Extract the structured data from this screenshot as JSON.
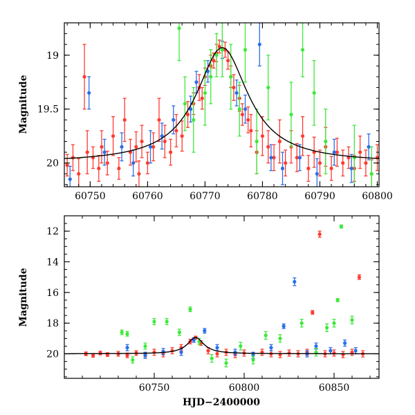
{
  "chart_data": [
    {
      "type": "scatter",
      "panel": "top",
      "xlabel": "",
      "ylabel": "Magnitude",
      "xlim": [
        60745.5,
        60800.3
      ],
      "ylim": [
        20.22,
        18.7
      ],
      "y_inverted": true,
      "x_ticks": [
        60750,
        60760,
        60770,
        60780,
        60790,
        60800
      ],
      "y_ticks": [
        19,
        19.5,
        20
      ],
      "x_tick_labels": [
        "60750",
        "60760",
        "60770",
        "60780",
        "60790",
        "60800"
      ],
      "y_tick_labels": [
        "19",
        "19.5",
        "20"
      ],
      "model_curve": {
        "name": "",
        "color": "#000000",
        "peak_x": 60773.0,
        "peak_mag": 18.93,
        "baseline_mag": 20.0,
        "width_days": 5.5
      },
      "series": [
        {
          "color": "#ff3b2f",
          "points": [
            [
              60746,
              20.02,
              0.1
            ],
            [
              60747,
              19.95,
              0.12
            ],
            [
              60748,
              20.1,
              0.14
            ],
            [
              60749,
              19.2,
              0.3
            ],
            [
              60749.5,
              19.9,
              0.2
            ],
            [
              60750.5,
              19.95,
              0.1
            ],
            [
              60751.5,
              20.05,
              0.12
            ],
            [
              60752,
              19.85,
              0.15
            ],
            [
              60753,
              20.0,
              0.11
            ],
            [
              60754,
              19.75,
              0.18
            ],
            [
              60755,
              20.05,
              0.1
            ],
            [
              60756,
              19.6,
              0.2
            ],
            [
              60757,
              19.9,
              0.12
            ],
            [
              60758,
              19.85,
              0.14
            ],
            [
              60758.5,
              20.1,
              0.12
            ],
            [
              60759,
              19.8,
              0.15
            ],
            [
              60760,
              20.0,
              0.1
            ],
            [
              60761,
              19.85,
              0.13
            ],
            [
              60762,
              19.6,
              0.2
            ],
            [
              60763,
              19.8,
              0.15
            ],
            [
              60764,
              19.9,
              0.12
            ],
            [
              60765,
              19.7,
              0.15
            ],
            [
              60766,
              19.75,
              0.14
            ],
            [
              60767,
              19.55,
              0.12
            ],
            [
              60768,
              19.45,
              0.1
            ],
            [
              60769,
              19.3,
              0.12
            ],
            [
              60769.5,
              19.4,
              0.1
            ],
            [
              60770,
              19.2,
              0.08
            ],
            [
              60771,
              19.1,
              0.1
            ],
            [
              60771.5,
              19.05,
              0.07
            ],
            [
              60772,
              18.98,
              0.08
            ],
            [
              60772.5,
              18.92,
              0.06
            ],
            [
              60773.5,
              18.95,
              0.07
            ],
            [
              60774,
              19.05,
              0.08
            ],
            [
              60774.5,
              19.2,
              0.1
            ],
            [
              60775,
              19.3,
              0.12
            ],
            [
              60776,
              19.4,
              0.12
            ],
            [
              60776.5,
              19.55,
              0.1
            ],
            [
              60777.5,
              19.6,
              0.12
            ],
            [
              60778,
              19.7,
              0.15
            ],
            [
              60779,
              19.9,
              0.2
            ],
            [
              60780,
              19.75,
              0.18
            ],
            [
              60781,
              19.85,
              0.15
            ],
            [
              60782,
              19.95,
              0.12
            ],
            [
              60783,
              19.8,
              0.2
            ],
            [
              60784,
              20.0,
              0.12
            ],
            [
              60785,
              19.85,
              0.15
            ],
            [
              60786,
              19.95,
              0.13
            ],
            [
              60787,
              19.75,
              0.18
            ],
            [
              60788,
              20.05,
              0.12
            ],
            [
              60789,
              19.9,
              0.14
            ],
            [
              60790,
              20.0,
              0.12
            ],
            [
              60791,
              19.85,
              0.18
            ],
            [
              60792,
              20.05,
              0.11
            ],
            [
              60793,
              19.9,
              0.13
            ],
            [
              60794,
              20.0,
              0.12
            ],
            [
              60795,
              19.95,
              0.1
            ],
            [
              60796,
              20.05,
              0.12
            ],
            [
              60797,
              19.9,
              0.15
            ],
            [
              60798,
              20.0,
              0.12
            ],
            [
              60799,
              20.1,
              0.13
            ],
            [
              60800,
              19.95,
              0.12
            ]
          ]
        },
        {
          "color": "#2a6ee8",
          "points": [
            [
              60746.5,
              20.15,
              0.12
            ],
            [
              60749.8,
              19.35,
              0.15
            ],
            [
              60752.5,
              19.9,
              0.12
            ],
            [
              60755.5,
              19.85,
              0.13
            ],
            [
              60757.5,
              20.0,
              0.12
            ],
            [
              60760.5,
              19.85,
              0.15
            ],
            [
              60762.5,
              19.75,
              0.12
            ],
            [
              60764.5,
              19.6,
              0.13
            ],
            [
              60767.5,
              19.5,
              0.12
            ],
            [
              60768.5,
              19.25,
              0.1
            ],
            [
              60770.5,
              19.15,
              0.1
            ],
            [
              60773,
              18.95,
              0.08
            ],
            [
              60775.5,
              19.35,
              0.12
            ],
            [
              60777,
              19.5,
              0.13
            ],
            [
              60779.5,
              18.9,
              0.2
            ],
            [
              60781.5,
              19.95,
              0.12
            ],
            [
              60783.5,
              20.05,
              0.15
            ],
            [
              60786.5,
              19.95,
              0.12
            ],
            [
              60789.5,
              20.1,
              0.14
            ],
            [
              60792.5,
              19.9,
              0.12
            ],
            [
              60795.5,
              20.05,
              0.13
            ],
            [
              60798.5,
              19.85,
              0.12
            ]
          ]
        },
        {
          "color": "#3ee83a",
          "points": [
            [
              60765.5,
              18.75,
              0.3
            ],
            [
              60766.5,
              19.45,
              0.25
            ],
            [
              60768,
              19.6,
              0.3
            ],
            [
              60770,
              19.35,
              0.3
            ],
            [
              60771,
              19.2,
              0.25
            ],
            [
              60772,
              19.0,
              0.2
            ],
            [
              60773,
              18.95,
              0.25
            ],
            [
              60774.5,
              19.2,
              0.3
            ],
            [
              60776,
              19.5,
              0.25
            ],
            [
              60777,
              18.95,
              0.3
            ],
            [
              60779,
              19.8,
              0.3
            ],
            [
              60781,
              19.3,
              0.3
            ],
            [
              60785,
              19.55,
              0.3
            ],
            [
              60787,
              18.95,
              0.25
            ],
            [
              60789,
              19.35,
              0.3
            ],
            [
              60791,
              19.8,
              0.3
            ],
            [
              60796,
              19.95,
              0.3
            ],
            [
              60799,
              20.1,
              0.25
            ]
          ]
        }
      ]
    },
    {
      "type": "scatter",
      "panel": "bottom",
      "xlabel": "HJD−2400000",
      "ylabel": "Magnitude",
      "xlim": [
        60700,
        60875
      ],
      "ylim": [
        21.6,
        11.0
      ],
      "y_inverted": true,
      "x_ticks": [
        60750,
        60800,
        60850
      ],
      "y_ticks": [
        12,
        14,
        16,
        18,
        20
      ],
      "x_tick_labels": [
        "60750",
        "60800",
        "60850"
      ],
      "y_tick_labels": [
        "12",
        "14",
        "16",
        "18",
        "20"
      ],
      "model_curve": {
        "name": "",
        "color": "#000000",
        "peak_x": 60773.0,
        "peak_mag": 18.93,
        "baseline_mag": 20.0,
        "width_days": 5.5
      },
      "series": [
        {
          "color": "#ff3b2f",
          "points": [
            [
              60712,
              20.0,
              0.12
            ],
            [
              60716,
              20.1,
              0.12
            ],
            [
              60720,
              19.95,
              0.12
            ],
            [
              60724,
              20.05,
              0.12
            ],
            [
              60730,
              20.0,
              0.15
            ],
            [
              60735,
              20.1,
              0.15
            ],
            [
              60740,
              19.95,
              0.15
            ],
            [
              60745,
              20.05,
              0.15
            ],
            [
              60750,
              19.9,
              0.2
            ],
            [
              60755,
              20.0,
              0.2
            ],
            [
              60760,
              19.8,
              0.2
            ],
            [
              60765,
              19.6,
              0.2
            ],
            [
              60770,
              19.2,
              0.15
            ],
            [
              60773,
              18.95,
              0.1
            ],
            [
              60776,
              19.3,
              0.15
            ],
            [
              60780,
              19.8,
              0.2
            ],
            [
              60785,
              20.0,
              0.2
            ],
            [
              60790,
              19.9,
              0.2
            ],
            [
              60795,
              20.05,
              0.2
            ],
            [
              60800,
              19.95,
              0.2
            ],
            [
              60805,
              20.1,
              0.2
            ],
            [
              60810,
              19.9,
              0.2
            ],
            [
              60815,
              20.0,
              0.2
            ],
            [
              60820,
              20.05,
              0.2
            ],
            [
              60825,
              19.95,
              0.2
            ],
            [
              60830,
              20.0,
              0.2
            ],
            [
              60835,
              19.9,
              0.2
            ],
            [
              60838,
              17.3,
              0.12
            ],
            [
              60842,
              12.2,
              0.2
            ],
            [
              60845,
              20.0,
              0.2
            ],
            [
              60850,
              19.95,
              0.2
            ],
            [
              60855,
              20.05,
              0.2
            ],
            [
              60860,
              19.9,
              0.2
            ],
            [
              60864,
              15.0,
              0.15
            ],
            [
              60866,
              20.0,
              0.2
            ]
          ]
        },
        {
          "color": "#2a6ee8",
          "points": [
            [
              60735,
              19.6,
              0.2
            ],
            [
              60745,
              20.1,
              0.2
            ],
            [
              60755,
              19.85,
              0.2
            ],
            [
              60765,
              19.9,
              0.2
            ],
            [
              60772,
              19.1,
              0.15
            ],
            [
              60778,
              18.5,
              0.15
            ],
            [
              60785,
              19.6,
              0.2
            ],
            [
              60795,
              19.9,
              0.2
            ],
            [
              60805,
              20.1,
              0.2
            ],
            [
              60815,
              19.6,
              0.2
            ],
            [
              60822,
              18.2,
              0.15
            ],
            [
              60828,
              15.3,
              0.25
            ],
            [
              60835,
              20.0,
              0.2
            ],
            [
              60840,
              19.5,
              0.2
            ],
            [
              60848,
              19.8,
              0.2
            ],
            [
              60856,
              19.3,
              0.2
            ],
            [
              60862,
              19.8,
              0.2
            ]
          ]
        },
        {
          "color": "#3ee83a",
          "points": [
            [
              60732,
              18.6,
              0.15
            ],
            [
              60735,
              18.7,
              0.15
            ],
            [
              60738,
              20.4,
              0.2
            ],
            [
              60745,
              19.5,
              0.2
            ],
            [
              60750,
              17.9,
              0.2
            ],
            [
              60757,
              17.9,
              0.2
            ],
            [
              60764,
              18.6,
              0.2
            ],
            [
              60770,
              17.1,
              0.15
            ],
            [
              60775,
              19.2,
              0.2
            ],
            [
              60782,
              20.3,
              0.25
            ],
            [
              60790,
              20.6,
              0.25
            ],
            [
              60798,
              19.5,
              0.25
            ],
            [
              60805,
              20.4,
              0.25
            ],
            [
              60812,
              18.8,
              0.25
            ],
            [
              60820,
              19.0,
              0.25
            ],
            [
              60832,
              18.0,
              0.25
            ],
            [
              60840,
              19.9,
              0.25
            ],
            [
              60846,
              18.3,
              0.25
            ],
            [
              60850,
              18.0,
              0.25
            ],
            [
              60852,
              16.5,
              0.1
            ],
            [
              60854,
              11.7,
              0.1
            ],
            [
              60860,
              17.8,
              0.25
            ]
          ]
        }
      ]
    }
  ]
}
